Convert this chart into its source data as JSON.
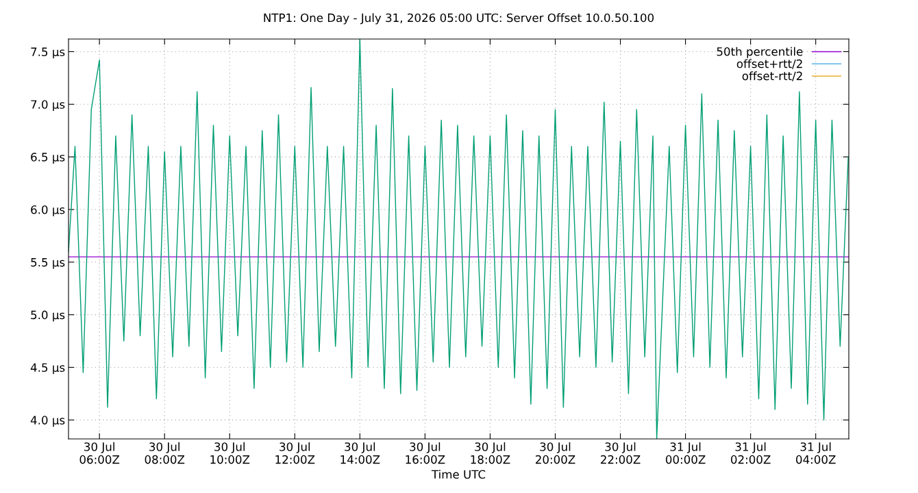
{
  "chart_data": {
    "type": "line",
    "title": "NTP1: One Day - July 31, 2026 05:00 UTC: Server Offset 10.0.50.100",
    "xlabel": "Time UTC",
    "xlim": [
      "2026-07-30T05:03",
      "2026-07-31T05:01"
    ],
    "xticks": [
      {
        "value": "2026-07-30T06:00",
        "label": "30 Jul\n06:00Z"
      },
      {
        "value": "2026-07-30T08:00",
        "label": "30 Jul\n08:00Z"
      },
      {
        "value": "2026-07-30T10:00",
        "label": "30 Jul\n10:00Z"
      },
      {
        "value": "2026-07-30T12:00",
        "label": "30 Jul\n12:00Z"
      },
      {
        "value": "2026-07-30T14:00",
        "label": "30 Jul\n14:00Z"
      },
      {
        "value": "2026-07-30T16:00",
        "label": "30 Jul\n16:00Z"
      },
      {
        "value": "2026-07-30T18:00",
        "label": "30 Jul\n18:00Z"
      },
      {
        "value": "2026-07-30T20:00",
        "label": "30 Jul\n20:00Z"
      },
      {
        "value": "2026-07-30T22:00",
        "label": "30 Jul\n22:00Z"
      },
      {
        "value": "2026-07-31T00:00",
        "label": "31 Jul\n00:00Z"
      },
      {
        "value": "2026-07-31T02:00",
        "label": "31 Jul\n02:00Z"
      },
      {
        "value": "2026-07-31T04:00",
        "label": "31 Jul\n04:00Z"
      }
    ],
    "ylim": [
      3.82,
      7.62
    ],
    "yticks": [
      {
        "value": 4.0,
        "label": "4.0 µs"
      },
      {
        "value": 4.5,
        "label": "4.5 µs"
      },
      {
        "value": 5.0,
        "label": "5.0 µs"
      },
      {
        "value": 5.5,
        "label": "5.5 µs"
      },
      {
        "value": 6.0,
        "label": "6.0 µs"
      },
      {
        "value": 6.5,
        "label": "6.5 µs"
      },
      {
        "value": 7.0,
        "label": "7.0 µs"
      },
      {
        "value": 7.5,
        "label": "7.5 µs"
      }
    ],
    "grid": true,
    "legend": "top right",
    "line_style": "solid",
    "marker": "none",
    "series": [
      {
        "name": "50th percentile",
        "color": "#9400d3",
        "x": [
          "2026-07-30T05:03",
          "2026-07-31T05:01"
        ],
        "values": [
          5.55,
          5.55
        ]
      },
      {
        "color": "#009e73",
        "x": [
          "2026-07-30T05:03",
          "2026-07-30T05:15",
          "2026-07-30T05:30",
          "2026-07-30T05:45",
          "2026-07-30T06:00",
          "2026-07-30T06:15",
          "2026-07-30T06:30",
          "2026-07-30T06:45",
          "2026-07-30T07:00",
          "2026-07-30T07:15",
          "2026-07-30T07:30",
          "2026-07-30T07:45",
          "2026-07-30T08:00",
          "2026-07-30T08:15",
          "2026-07-30T08:30",
          "2026-07-30T08:45",
          "2026-07-30T09:00",
          "2026-07-30T09:15",
          "2026-07-30T09:30",
          "2026-07-30T09:45",
          "2026-07-30T10:00",
          "2026-07-30T10:15",
          "2026-07-30T10:30",
          "2026-07-30T10:45",
          "2026-07-30T11:00",
          "2026-07-30T11:15",
          "2026-07-30T11:30",
          "2026-07-30T11:45",
          "2026-07-30T12:00",
          "2026-07-30T12:15",
          "2026-07-30T12:30",
          "2026-07-30T12:45",
          "2026-07-30T13:00",
          "2026-07-30T13:15",
          "2026-07-30T13:30",
          "2026-07-30T13:45",
          "2026-07-30T14:00",
          "2026-07-30T14:15",
          "2026-07-30T14:30",
          "2026-07-30T14:45",
          "2026-07-30T15:00",
          "2026-07-30T15:15",
          "2026-07-30T15:30",
          "2026-07-30T15:45",
          "2026-07-30T16:00",
          "2026-07-30T16:15",
          "2026-07-30T16:30",
          "2026-07-30T16:45",
          "2026-07-30T17:00",
          "2026-07-30T17:15",
          "2026-07-30T17:30",
          "2026-07-30T17:45",
          "2026-07-30T18:00",
          "2026-07-30T18:15",
          "2026-07-30T18:30",
          "2026-07-30T18:45",
          "2026-07-30T19:00",
          "2026-07-30T19:15",
          "2026-07-30T19:30",
          "2026-07-30T19:45",
          "2026-07-30T20:00",
          "2026-07-30T20:15",
          "2026-07-30T20:30",
          "2026-07-30T20:45",
          "2026-07-30T21:00",
          "2026-07-30T21:15",
          "2026-07-30T21:30",
          "2026-07-30T21:45",
          "2026-07-30T22:00",
          "2026-07-30T22:15",
          "2026-07-30T22:30",
          "2026-07-30T22:45",
          "2026-07-30T23:00",
          "2026-07-30T23:07",
          "2026-07-30T23:30",
          "2026-07-30T23:45",
          "2026-07-31T00:00",
          "2026-07-31T00:15",
          "2026-07-31T00:30",
          "2026-07-31T00:45",
          "2026-07-31T01:00",
          "2026-07-31T01:15",
          "2026-07-31T01:30",
          "2026-07-31T01:45",
          "2026-07-31T02:00",
          "2026-07-31T02:15",
          "2026-07-31T02:30",
          "2026-07-31T02:45",
          "2026-07-31T03:00",
          "2026-07-31T03:15",
          "2026-07-31T03:30",
          "2026-07-31T03:45",
          "2026-07-31T04:00",
          "2026-07-31T04:15",
          "2026-07-31T04:30",
          "2026-07-31T04:45",
          "2026-07-31T05:00"
        ],
        "values": [
          5.6,
          6.6,
          4.45,
          6.95,
          7.42,
          4.12,
          6.7,
          4.75,
          6.9,
          4.8,
          6.6,
          4.2,
          6.55,
          4.6,
          6.6,
          4.7,
          7.12,
          4.4,
          6.8,
          4.65,
          6.7,
          4.8,
          6.6,
          4.3,
          6.75,
          4.5,
          6.9,
          4.55,
          6.6,
          4.5,
          7.16,
          4.65,
          6.6,
          4.7,
          6.6,
          4.4,
          7.62,
          4.5,
          6.8,
          4.3,
          7.15,
          4.25,
          6.7,
          4.28,
          6.6,
          4.55,
          6.85,
          4.5,
          6.8,
          4.6,
          6.7,
          4.7,
          6.7,
          4.5,
          6.9,
          4.4,
          6.75,
          4.15,
          6.7,
          4.3,
          6.95,
          4.12,
          6.6,
          4.6,
          6.6,
          4.5,
          7.02,
          4.55,
          6.65,
          4.25,
          6.95,
          4.6,
          6.7,
          3.82,
          6.6,
          4.45,
          6.8,
          4.6,
          7.1,
          4.5,
          6.85,
          4.4,
          6.75,
          4.6,
          6.6,
          4.2,
          6.9,
          4.1,
          6.7,
          4.3,
          7.12,
          4.15,
          6.85,
          4.0,
          6.85,
          4.7,
          6.5
        ]
      },
      {
        "name": "offset+rtt/2",
        "color": "#56b4e9"
      },
      {
        "name": "offset-rtt/2",
        "color": "#e69f00"
      }
    ]
  }
}
